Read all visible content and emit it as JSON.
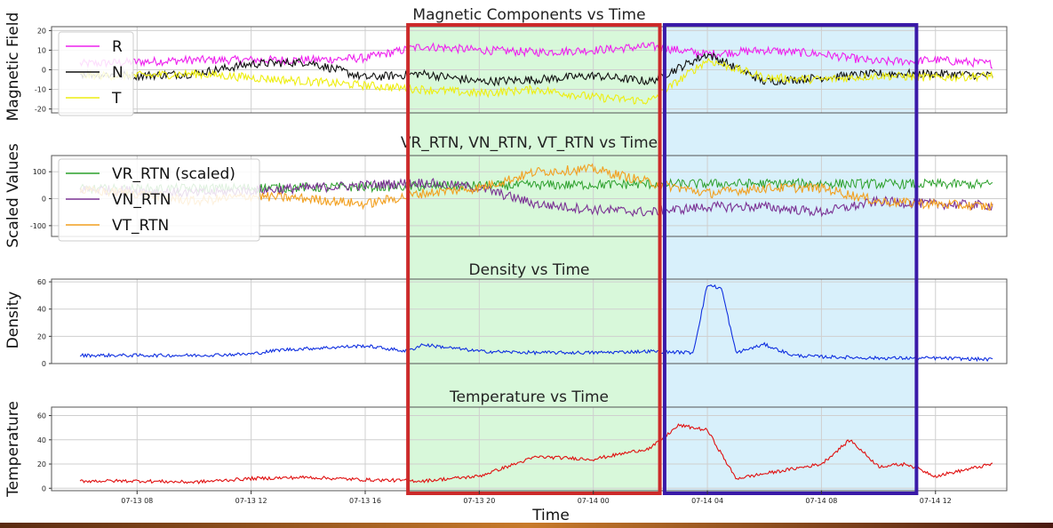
{
  "figure": {
    "xlabel": "Time",
    "x_ticks": [
      "07-13 08",
      "07-13 12",
      "07-13 16",
      "07-13 20",
      "07-14 00",
      "07-14 04",
      "07-14 08",
      "07-14 12"
    ],
    "x_range": [
      "07-13 05:00",
      "07-14 14:30"
    ],
    "highlight_regions": [
      {
        "name": "green-region",
        "start": "07-13 17:30",
        "end": "07-14 02:20",
        "fill": "#d8f8da",
        "stroke": "#cc2a2a"
      },
      {
        "name": "blue-region",
        "start": "07-14 02:30",
        "end": "07-14 11:20",
        "fill": "#d8f0fb",
        "stroke": "#3a1aa8"
      }
    ]
  },
  "chart_data": [
    {
      "type": "line",
      "title": "Magnetic Components vs Time",
      "ylabel": "Magnetic Field",
      "ylim": [
        -22,
        22
      ],
      "yticks": [
        -20,
        -10,
        0,
        10,
        20
      ],
      "legend": "top-left",
      "grid": true,
      "x": [
        "07-13 06",
        "07-13 08",
        "07-13 10",
        "07-13 12",
        "07-13 14",
        "07-13 16",
        "07-13 18",
        "07-13 20",
        "07-13 22",
        "07-14 00",
        "07-14 02",
        "07-14 04",
        "07-14 06",
        "07-14 08",
        "07-14 10",
        "07-14 12",
        "07-14 14"
      ],
      "series": [
        {
          "name": "R",
          "color": "#ee22ee",
          "values": [
            3,
            4,
            5,
            5,
            5,
            6,
            12,
            10,
            9,
            10,
            12,
            8,
            10,
            8,
            4,
            5,
            3
          ]
        },
        {
          "name": "N",
          "color": "#111111",
          "values": [
            -2,
            -3,
            -2,
            3,
            4,
            -4,
            -2,
            -6,
            -5,
            -3,
            -6,
            8,
            -6,
            -4,
            -2,
            -2,
            -3
          ]
        },
        {
          "name": "T",
          "color": "#eeee10",
          "values": [
            -3,
            -3,
            -2,
            -4,
            -6,
            -8,
            -10,
            -12,
            -10,
            -14,
            -16,
            5,
            -4,
            -5,
            -3,
            -4,
            -3
          ]
        }
      ]
    },
    {
      "type": "line",
      "title": "VR_RTN, VN_RTN, VT_RTN vs Time",
      "ylabel": "Scaled Values",
      "ylim": [
        -140,
        160
      ],
      "yticks": [
        -100,
        0,
        100
      ],
      "legend": "top-left",
      "grid": true,
      "x": [
        "07-13 06",
        "07-13 08",
        "07-13 10",
        "07-13 12",
        "07-13 14",
        "07-13 16",
        "07-13 18",
        "07-13 20",
        "07-13 22",
        "07-14 00",
        "07-14 02",
        "07-14 04",
        "07-14 06",
        "07-14 08",
        "07-14 10",
        "07-14 12",
        "07-14 14"
      ],
      "series": [
        {
          "name": "VR_RTN (scaled)",
          "color": "#2ca02c",
          "values": [
            35,
            36,
            38,
            40,
            42,
            44,
            46,
            48,
            50,
            52,
            54,
            55,
            56,
            56,
            55,
            54,
            53
          ]
        },
        {
          "name": "VN_RTN",
          "color": "#7b3294",
          "values": [
            35,
            30,
            20,
            30,
            40,
            50,
            60,
            40,
            -20,
            -40,
            -50,
            -30,
            -30,
            -50,
            -10,
            -20,
            -25
          ]
        },
        {
          "name": "VT_RTN",
          "color": "#f2a020",
          "values": [
            30,
            20,
            -10,
            10,
            0,
            -20,
            20,
            40,
            100,
            110,
            60,
            20,
            40,
            40,
            -10,
            -20,
            -30
          ]
        }
      ]
    },
    {
      "type": "line",
      "title": "Density vs Time",
      "ylabel": "Density",
      "ylim": [
        0,
        62
      ],
      "yticks": [
        0,
        20,
        40,
        60
      ],
      "grid": true,
      "x": [
        "07-13 06",
        "07-13 08",
        "07-13 10",
        "07-13 12",
        "07-13 13",
        "07-13 14",
        "07-13 16",
        "07-13 17.5",
        "07-13 18",
        "07-13 20",
        "07-13 22",
        "07-14 00",
        "07-14 02",
        "07-14 03.5",
        "07-14 04",
        "07-14 04.5",
        "07-14 05",
        "07-14 06",
        "07-14 07",
        "07-14 08",
        "07-14 10",
        "07-14 12",
        "07-14 14"
      ],
      "series": [
        {
          "name": "",
          "color": "#1030e0",
          "values": [
            6,
            6,
            6,
            7,
            10,
            11,
            13,
            9,
            14,
            9,
            8,
            8,
            9,
            8,
            58,
            55,
            8,
            14,
            6,
            5,
            4,
            4,
            3
          ]
        }
      ]
    },
    {
      "type": "line",
      "title": "Temperature vs Time",
      "ylabel": "Temperature",
      "ylim": [
        -2,
        67
      ],
      "yticks": [
        0,
        20,
        40,
        60
      ],
      "grid": true,
      "x": [
        "07-13 06",
        "07-13 08",
        "07-13 10",
        "07-13 12",
        "07-13 14",
        "07-13 16",
        "07-13 18",
        "07-13 20",
        "07-13 22",
        "07-14 00",
        "07-14 02",
        "07-14 03",
        "07-14 04",
        "07-14 05",
        "07-14 06",
        "07-14 08",
        "07-14 09",
        "07-14 10",
        "07-14 11",
        "07-14 12",
        "07-14 14"
      ],
      "series": [
        {
          "name": "",
          "color": "#e01010",
          "values": [
            6,
            6,
            5,
            8,
            9,
            7,
            6,
            10,
            26,
            24,
            33,
            52,
            48,
            8,
            12,
            20,
            40,
            18,
            20,
            10,
            20
          ]
        }
      ]
    }
  ]
}
